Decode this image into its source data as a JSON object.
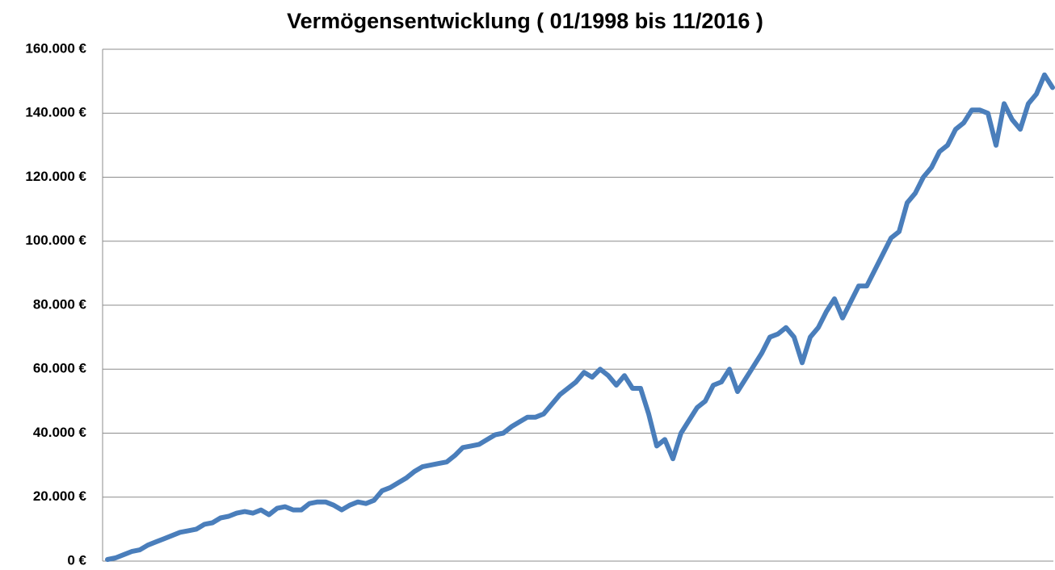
{
  "chart_data": {
    "type": "line",
    "title": "Vermögensentwicklung  ( 01/1998  bis  11/2016 )",
    "values": [
      500,
      1000,
      2000,
      3000,
      3500,
      5000,
      6000,
      7000,
      8000,
      9000,
      9500,
      10000,
      11500,
      12000,
      13500,
      14000,
      15000,
      15500,
      15000,
      16000,
      14500,
      16500,
      17000,
      16000,
      16000,
      18000,
      18500,
      18500,
      17500,
      16000,
      17500,
      18500,
      18000,
      19000,
      22000,
      23000,
      24500,
      26000,
      28000,
      29500,
      30000,
      30500,
      31000,
      33000,
      35500,
      36000,
      36500,
      38000,
      39500,
      40000,
      42000,
      43500,
      45000,
      45000,
      46000,
      49000,
      52000,
      54000,
      56000,
      59000,
      57500,
      60000,
      58000,
      55000,
      58000,
      54000,
      54000,
      46000,
      36000,
      38000,
      32000,
      40000,
      44000,
      48000,
      50000,
      55000,
      56000,
      60000,
      53000,
      57000,
      61000,
      65000,
      70000,
      71000,
      73000,
      70000,
      62000,
      70000,
      73000,
      78000,
      82000,
      76000,
      81000,
      86000,
      86000,
      91000,
      96000,
      101000,
      103000,
      112000,
      115000,
      120000,
      123000,
      128000,
      130000,
      135000,
      137000,
      141000,
      141000,
      140000,
      130000,
      143000,
      138000,
      135000,
      143000,
      146000,
      152000,
      148000
    ],
    "color": "#4a7ebb",
    "ylim": [
      0,
      160000
    ],
    "yticks": [
      {
        "value": 0,
        "label": "0 €"
      },
      {
        "value": 20000,
        "label": "20.000 €"
      },
      {
        "value": 40000,
        "label": "40.000 €"
      },
      {
        "value": 60000,
        "label": "60.000 €"
      },
      {
        "value": 80000,
        "label": "80.000 €"
      },
      {
        "value": 100000,
        "label": "100.000 €"
      },
      {
        "value": 120000,
        "label": "120.000 €"
      },
      {
        "value": 140000,
        "label": "140.000 €"
      },
      {
        "value": 160000,
        "label": "160.000 €"
      }
    ],
    "grid": true
  }
}
